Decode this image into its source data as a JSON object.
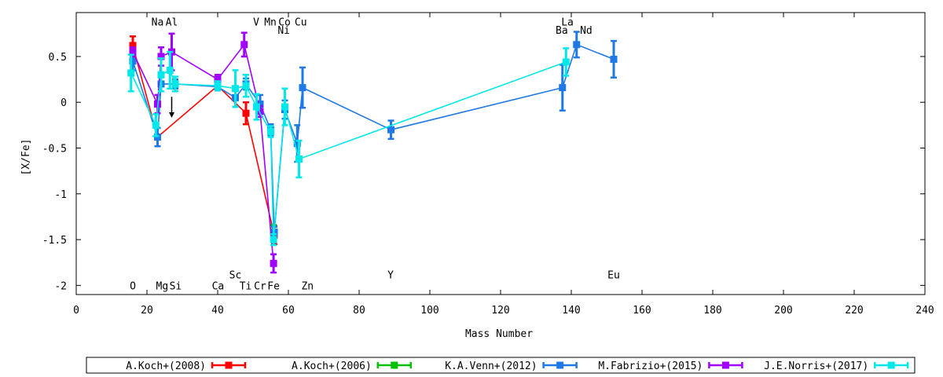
{
  "chart_data": {
    "type": "line",
    "xlabel": "Mass Number",
    "ylabel": "[X/Fe]",
    "xlim": [
      0,
      240
    ],
    "ylim": [
      -2.1,
      0.98
    ],
    "x_ticks": [
      0,
      20,
      40,
      60,
      80,
      100,
      120,
      140,
      160,
      180,
      200,
      220,
      240
    ],
    "y_ticks": [
      {
        "value": 0.5,
        "label": "0.5"
      },
      {
        "value": 0,
        "label": "0"
      },
      {
        "value": -0.5,
        "label": "-0.5"
      },
      {
        "value": -1,
        "label": "-1"
      },
      {
        "value": -1.5,
        "label": "-1.5"
      },
      {
        "value": -2,
        "label": "-2"
      }
    ],
    "grid": false,
    "legend_position": "bottom",
    "element_labels": [
      {
        "label": "O",
        "x": 16,
        "y": -2.0
      },
      {
        "label": "Na",
        "x": 23,
        "y": 0.88
      },
      {
        "label": "Mg",
        "x": 24.3,
        "y": -2.0
      },
      {
        "label": "Al",
        "x": 27,
        "y": 0.88
      },
      {
        "label": "Si",
        "x": 28.1,
        "y": -2.0
      },
      {
        "label": "Ca",
        "x": 40.1,
        "y": -2.0
      },
      {
        "label": "Sc",
        "x": 45,
        "y": -1.88
      },
      {
        "label": "Ti",
        "x": 47.9,
        "y": -2.0
      },
      {
        "label": "V",
        "x": 50.9,
        "y": 0.88
      },
      {
        "label": "Cr",
        "x": 52,
        "y": -2.0
      },
      {
        "label": "Mn",
        "x": 54.9,
        "y": 0.88
      },
      {
        "label": "Fe",
        "x": 55.8,
        "y": -2.0
      },
      {
        "label": "Co",
        "x": 58.9,
        "y": 0.88
      },
      {
        "label": "Ni",
        "x": 58.7,
        "y": 0.79
      },
      {
        "label": "Cu",
        "x": 63.5,
        "y": 0.88
      },
      {
        "label": "Zn",
        "x": 65.4,
        "y": -2.0
      },
      {
        "label": "Y",
        "x": 88.9,
        "y": -1.88
      },
      {
        "label": "La",
        "x": 138.9,
        "y": 0.88
      },
      {
        "label": "Ba",
        "x": 137.3,
        "y": 0.79
      },
      {
        "label": "Nd",
        "x": 144.2,
        "y": 0.79
      },
      {
        "label": "Eu",
        "x": 152,
        "y": -1.88
      }
    ],
    "upper_limit_arrow": {
      "x": 27,
      "y_from": 0.06,
      "y_to": -0.17,
      "color": "#000000"
    },
    "series": [
      {
        "name": "A.Koch+(2008)",
        "color": "#ff0000",
        "points": [
          {
            "x": 16,
            "y": 0.62,
            "err": 0.1
          },
          {
            "x": 23,
            "y": -0.38,
            "err": 0.1
          },
          {
            "x": 40,
            "y": 0.18,
            "err": 0.05
          },
          {
            "x": 48,
            "y": -0.12,
            "err": 0.12
          },
          {
            "x": 56,
            "y": -1.45,
            "err": 0.1
          }
        ]
      },
      {
        "name": "A.Koch+(2006)",
        "color": "#00c000",
        "points": [
          {
            "x": 55.8,
            "y": -1.42,
            "err": 0.08
          }
        ]
      },
      {
        "name": "K.A.Venn+(2012)",
        "color": "#1e78e6",
        "points": [
          {
            "x": 16,
            "y": 0.45,
            "err": 0.1
          },
          {
            "x": 23,
            "y": -0.38,
            "err": 0.1
          },
          {
            "x": 24,
            "y": 0.2,
            "err": 0.08
          },
          {
            "x": 28,
            "y": 0.2,
            "err": 0.05
          },
          {
            "x": 40,
            "y": 0.17,
            "err": 0.04
          },
          {
            "x": 45,
            "y": 0.05,
            "err": 0.1
          },
          {
            "x": 48,
            "y": 0.2,
            "err": 0.06
          },
          {
            "x": 52,
            "y": -0.02,
            "err": 0.1
          },
          {
            "x": 55,
            "y": -0.3,
            "err": 0.06
          },
          {
            "x": 56,
            "y": -1.42,
            "err": 0.06
          },
          {
            "x": 59,
            "y": -0.08,
            "err": 0.1
          },
          {
            "x": 62.5,
            "y": -0.45,
            "err": 0.2
          },
          {
            "x": 64,
            "y": 0.16,
            "err": 0.22
          },
          {
            "x": 89,
            "y": -0.3,
            "err": 0.1
          },
          {
            "x": 137.5,
            "y": 0.16,
            "err": 0.25
          },
          {
            "x": 141.5,
            "y": 0.63,
            "err": 0.14
          },
          {
            "x": 152,
            "y": 0.47,
            "err": 0.2
          }
        ]
      },
      {
        "name": "M.Fabrizio+(2015)",
        "color": "#a000ff",
        "points": [
          {
            "x": 16,
            "y": 0.55,
            "err": 0.05
          },
          {
            "x": 23,
            "y": -0.02,
            "err": 0.1
          },
          {
            "x": 24,
            "y": 0.5,
            "err": 0.1
          },
          {
            "x": 27,
            "y": 0.55,
            "err": 0.2
          },
          {
            "x": 40,
            "y": 0.25,
            "err": 0.05
          },
          {
            "x": 47.5,
            "y": 0.63,
            "err": 0.13
          },
          {
            "x": 52,
            "y": -0.1,
            "err": 0.06
          },
          {
            "x": 55.8,
            "y": -1.76,
            "err": 0.1
          }
        ]
      },
      {
        "name": "J.E.Norris+(2017)",
        "color": "#00e8e8",
        "points": [
          {
            "x": 15.5,
            "y": 0.32,
            "err": 0.2
          },
          {
            "x": 22.5,
            "y": -0.25,
            "err": 0.12
          },
          {
            "x": 24,
            "y": 0.3,
            "err": 0.18
          },
          {
            "x": 26.5,
            "y": 0.35,
            "err": 0.2
          },
          {
            "x": 28,
            "y": 0.2,
            "err": 0.08
          },
          {
            "x": 40,
            "y": 0.18,
            "err": 0.05
          },
          {
            "x": 45,
            "y": 0.15,
            "err": 0.2
          },
          {
            "x": 48,
            "y": 0.18,
            "err": 0.12
          },
          {
            "x": 51,
            "y": -0.05,
            "err": 0.14
          },
          {
            "x": 55,
            "y": -0.32,
            "err": 0.06
          },
          {
            "x": 55.8,
            "y": -1.5,
            "err": 0.06
          },
          {
            "x": 59,
            "y": -0.05,
            "err": 0.2
          },
          {
            "x": 63,
            "y": -0.62,
            "err": 0.2
          },
          {
            "x": 138.5,
            "y": 0.44,
            "err": 0.15
          }
        ]
      }
    ]
  }
}
